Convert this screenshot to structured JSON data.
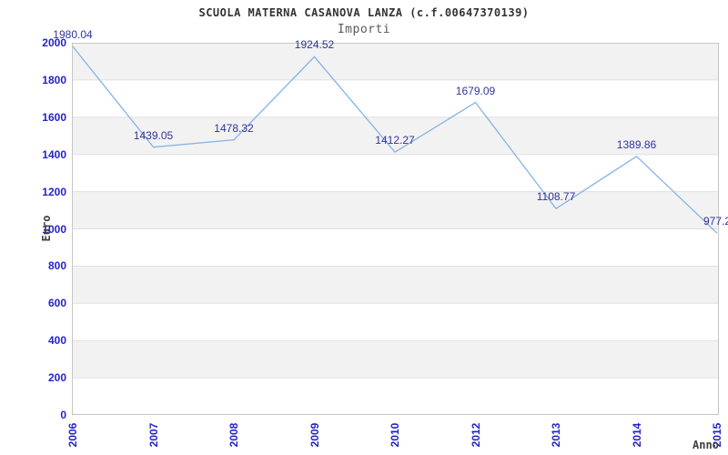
{
  "header": {
    "title": "SCUOLA MATERNA CASANOVA LANZA (c.f.00647370139)",
    "subtitle": "Importi"
  },
  "chart_data": {
    "type": "line",
    "title": "SCUOLA MATERNA CASANOVA LANZA (c.f.00647370139)",
    "subtitle": "Importi",
    "xlabel": "Anno",
    "ylabel": "Euro",
    "categories": [
      "2006",
      "2007",
      "2008",
      "2009",
      "2010",
      "2012",
      "2013",
      "2014",
      "2015"
    ],
    "values": [
      1980.04,
      1439.05,
      1478.32,
      1924.52,
      1412.27,
      1679.09,
      1108.77,
      1389.86,
      977.2
    ],
    "point_labels": [
      "1980.04",
      "1439.05",
      "1478.32",
      "1924.52",
      "1412.27",
      "1679.09",
      "1108.77",
      "1389.86",
      "977.2"
    ],
    "ylim": [
      0,
      2000
    ],
    "y_ticks": [
      0,
      200,
      400,
      600,
      800,
      1000,
      1200,
      1400,
      1600,
      1800,
      2000
    ],
    "grid": "alternating horizontal bands, gray band at top",
    "legend_position": "none",
    "colors": {
      "line": "#85b3e6",
      "band_gray": "#f2f2f2",
      "band_white": "#ffffff",
      "gridline": "#e0e0e0",
      "border": "#c6c6c6",
      "axis_tick_text": "#2424c8",
      "data_label_text": "#333399",
      "title_text": "#333333",
      "axis_title_text": "#404040"
    }
  }
}
